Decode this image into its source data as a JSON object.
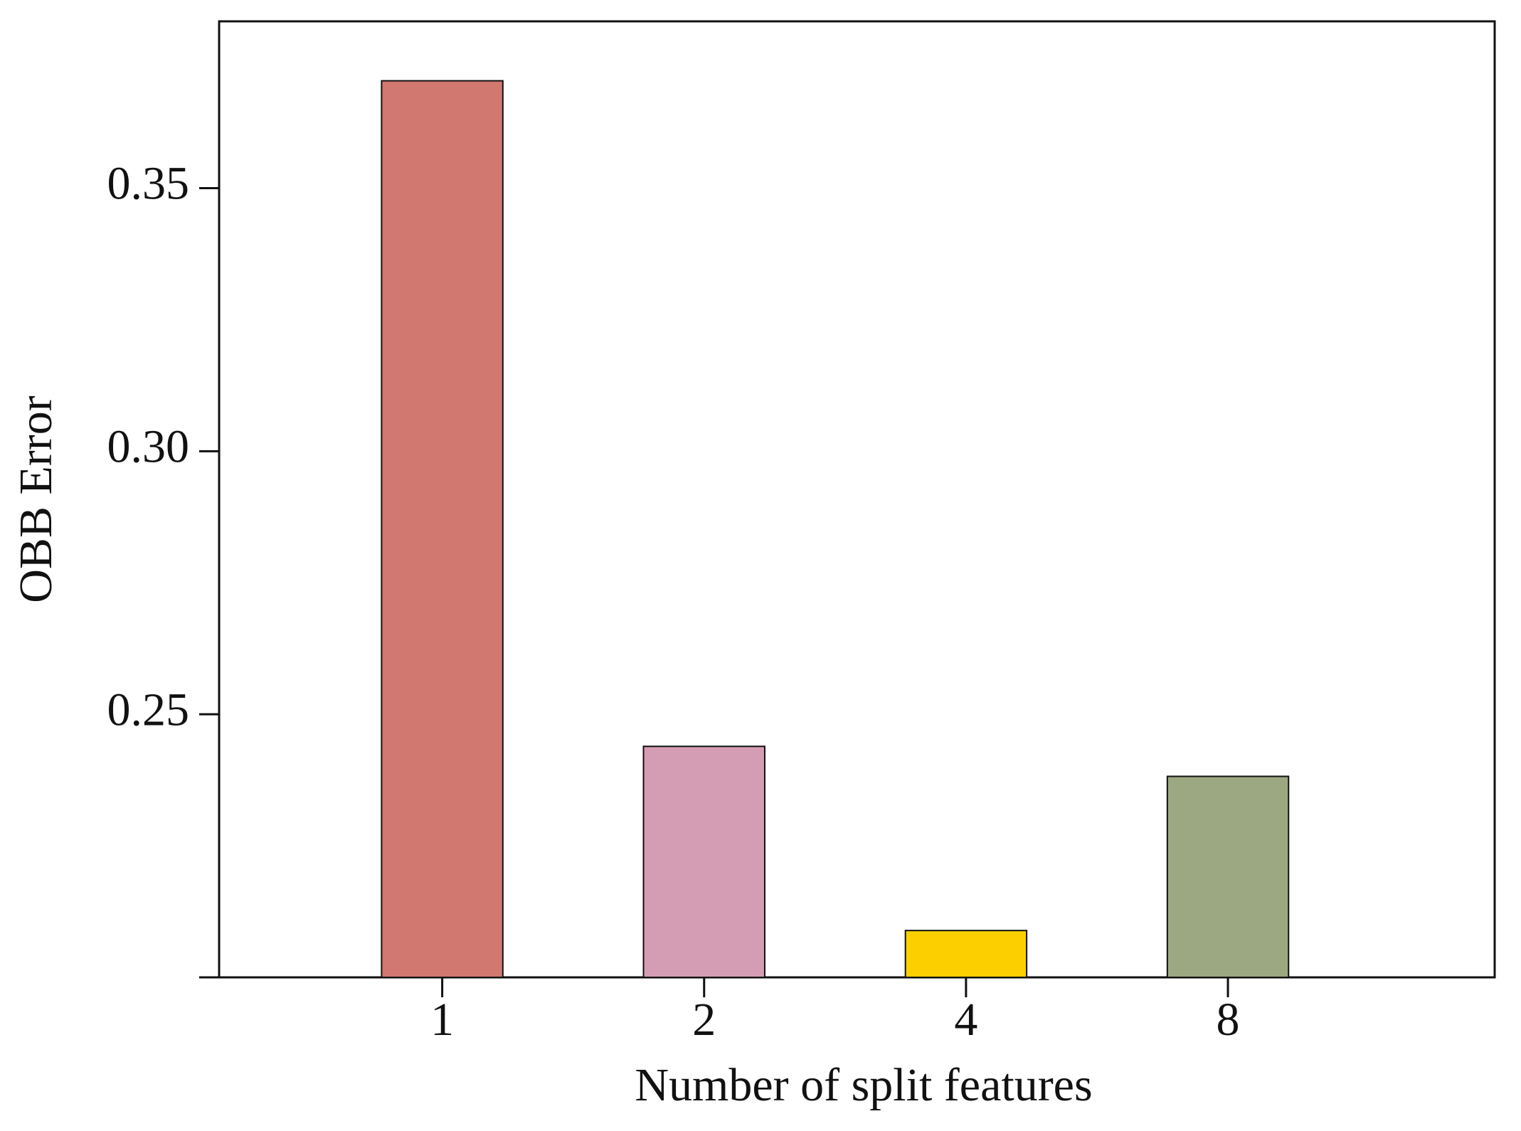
{
  "chart_data": {
    "type": "bar",
    "x_label": "Number of split features",
    "y_label": "OBB Error",
    "categories": [
      "1",
      "2",
      "4",
      "8"
    ],
    "values": [
      0.3704,
      0.2439,
      0.2089,
      0.2382
    ],
    "colors": [
      "#d17870",
      "#d59db4",
      "#fcd000",
      "#9ca881"
    ],
    "ylim": [
      0.2,
      0.3817
    ],
    "yticks": [
      0.25,
      {
        "value": 0.3,
        "label": "0.30"
      },
      0.35
    ],
    "grid": false
  }
}
